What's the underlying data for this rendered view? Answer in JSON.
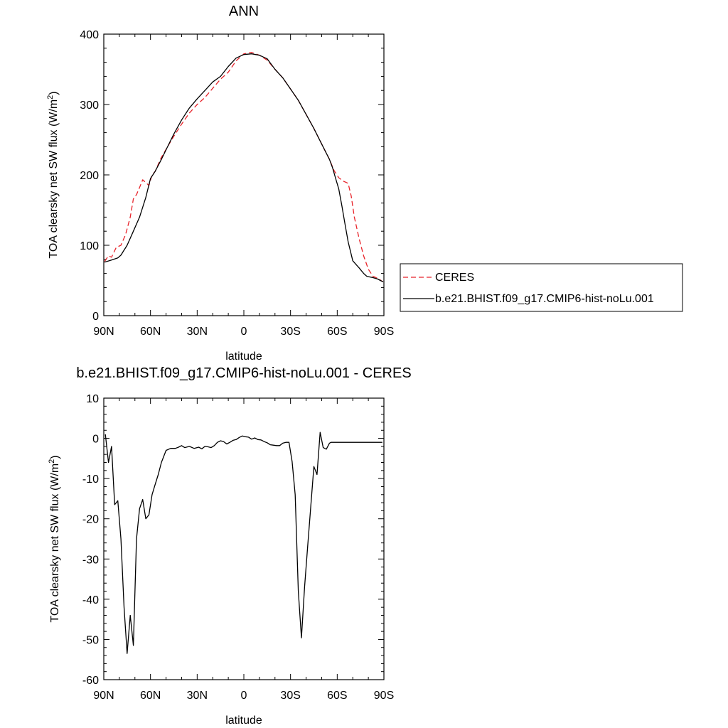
{
  "chart_data": [
    {
      "type": "line",
      "title": "ANN",
      "xlabel": "latitude",
      "ylabel": "TOA clearsky net SW flux (W/m",
      "ylabel_sup": "2",
      "ylabel_close": ")",
      "xlim": [
        90,
        -90
      ],
      "ylim": [
        0,
        400
      ],
      "xticks": [
        {
          "value": 90,
          "label": "90N"
        },
        {
          "value": 60,
          "label": "60N"
        },
        {
          "value": 30,
          "label": "30N"
        },
        {
          "value": 0,
          "label": "0"
        },
        {
          "value": -30,
          "label": "30S"
        },
        {
          "value": -60,
          "label": "60S"
        },
        {
          "value": -90,
          "label": "90S"
        }
      ],
      "yticks": [
        0,
        100,
        200,
        300,
        400
      ],
      "legend": {
        "placement": "right",
        "entries": [
          "CERES",
          "b.e21.BHIST.f09_g17.CMIP6-hist-noLu.001"
        ]
      },
      "series": [
        {
          "name": "CERES",
          "color": "#e8232a",
          "dash": true,
          "x": [
            89.5,
            87,
            85,
            82,
            79,
            76,
            73,
            71,
            69,
            67,
            65,
            61,
            59,
            57,
            53,
            49,
            45,
            40,
            35,
            30,
            25,
            20,
            15,
            10,
            5,
            0,
            -5,
            -10,
            -15,
            -20,
            -25,
            -30,
            -35,
            -40,
            -45,
            -50,
            -55,
            -58,
            -61,
            -64,
            -67,
            -69,
            -71,
            -74,
            -77,
            -80,
            -83,
            -86,
            -89.5
          ],
          "y": [
            77,
            85,
            83,
            97,
            100,
            115,
            140,
            166,
            172,
            182,
            193,
            185,
            200,
            205,
            225,
            240,
            255,
            272,
            288,
            300,
            310,
            323,
            336,
            346,
            362,
            372,
            374,
            370,
            363,
            350,
            338,
            322,
            306,
            286,
            266,
            244,
            222,
            206,
            196,
            191,
            188,
            170,
            140,
            110,
            85,
            66,
            56,
            53,
            48
          ]
        },
        {
          "name": "b.e21.BHIST.f09_g17.CMIP6-hist-noLu.001",
          "color": "#000000",
          "dash": false,
          "x": [
            89.5,
            85,
            81,
            79,
            75,
            71,
            67,
            63,
            60,
            57,
            53,
            49,
            45,
            40,
            35,
            30,
            25,
            20,
            15,
            10,
            5,
            0,
            -5,
            -10,
            -15,
            -20,
            -25,
            -30,
            -35,
            -40,
            -45,
            -50,
            -55,
            -57,
            -59,
            -61,
            -63,
            -65,
            -67,
            -70,
            -74,
            -77,
            -79,
            -81,
            -83,
            -86,
            -89.5
          ],
          "y": [
            76,
            79,
            82,
            86,
            100,
            120,
            140,
            168,
            195,
            205,
            222,
            240,
            258,
            278,
            295,
            308,
            320,
            332,
            340,
            354,
            366,
            371,
            372,
            370,
            365,
            350,
            338,
            322,
            306,
            286,
            266,
            244,
            222,
            210,
            195,
            180,
            156,
            130,
            105,
            78,
            68,
            60,
            56,
            55,
            54,
            52,
            48
          ]
        }
      ]
    },
    {
      "type": "line",
      "title": "b.e21.BHIST.f09_g17.CMIP6-hist-noLu.001 - CERES",
      "xlabel": "latitude",
      "ylabel": "TOA clearsky net SW flux (W/m",
      "ylabel_sup": "2",
      "ylabel_close": ")",
      "xlim": [
        90,
        -90
      ],
      "ylim": [
        -60,
        10
      ],
      "xticks": [
        {
          "value": 90,
          "label": "90N"
        },
        {
          "value": 60,
          "label": "60N"
        },
        {
          "value": 30,
          "label": "30N"
        },
        {
          "value": 0,
          "label": "0"
        },
        {
          "value": -30,
          "label": "30S"
        },
        {
          "value": -60,
          "label": "60S"
        },
        {
          "value": -90,
          "label": "90S"
        }
      ],
      "yticks": [
        -60,
        -50,
        -40,
        -30,
        -20,
        -10,
        0,
        10
      ],
      "series": [
        {
          "color": "#000000",
          "x": [
            89,
            87,
            85,
            83,
            81,
            79,
            77,
            75,
            73,
            71,
            69,
            67,
            65,
            63,
            61,
            59,
            57,
            55,
            53,
            50,
            47,
            44,
            42,
            40,
            38,
            35,
            32,
            29,
            27,
            25,
            23,
            21,
            19,
            17,
            15,
            13,
            11,
            9,
            7,
            5,
            3,
            1,
            -1,
            -3,
            -5,
            -7,
            -9,
            -11,
            -13,
            -15,
            -17,
            -19,
            -21,
            -23,
            -25,
            -27,
            -29,
            -31,
            -33,
            -35,
            -37,
            -39,
            -41,
            -43,
            -45,
            -47,
            -49,
            -51,
            -53,
            -55,
            -56,
            -57,
            -59,
            -61,
            -63,
            -65,
            -67,
            -69,
            -71,
            -73,
            -75,
            -77,
            -79,
            -81,
            -83,
            -85,
            -87,
            -89
          ],
          "y": [
            1,
            -6,
            -2,
            -16.5,
            -15.5,
            -25,
            -42,
            -53.5,
            -44,
            -51.5,
            -25,
            -17.5,
            -15.2,
            -20,
            -19,
            -14,
            -11.5,
            -9,
            -6,
            -3,
            -2.5,
            -2.5,
            -2.2,
            -1.8,
            -2.3,
            -2,
            -2.5,
            -2.2,
            -2.6,
            -2,
            -2.1,
            -2.3,
            -1.8,
            -1,
            -0.6,
            -0.8,
            -1.4,
            -1,
            -0.5,
            -0.3,
            0.2,
            0.6,
            0.4,
            0.3,
            -0.2,
            0.1,
            -0.3,
            -0.4,
            -0.8,
            -1.1,
            -1.6,
            -1.7,
            -1.8,
            -1.8,
            -1.2,
            -1,
            -1,
            -5.8,
            -14,
            -38,
            -49.6,
            -37,
            -27,
            -17,
            -7,
            -9,
            1.5,
            -2.3,
            -2.7,
            -1.2,
            -1,
            -1,
            -1,
            -1,
            -1,
            -1,
            -1,
            -1,
            -1,
            -1,
            -1,
            -1,
            -1,
            -1,
            -1,
            -1,
            -1,
            -1
          ]
        }
      ]
    }
  ]
}
